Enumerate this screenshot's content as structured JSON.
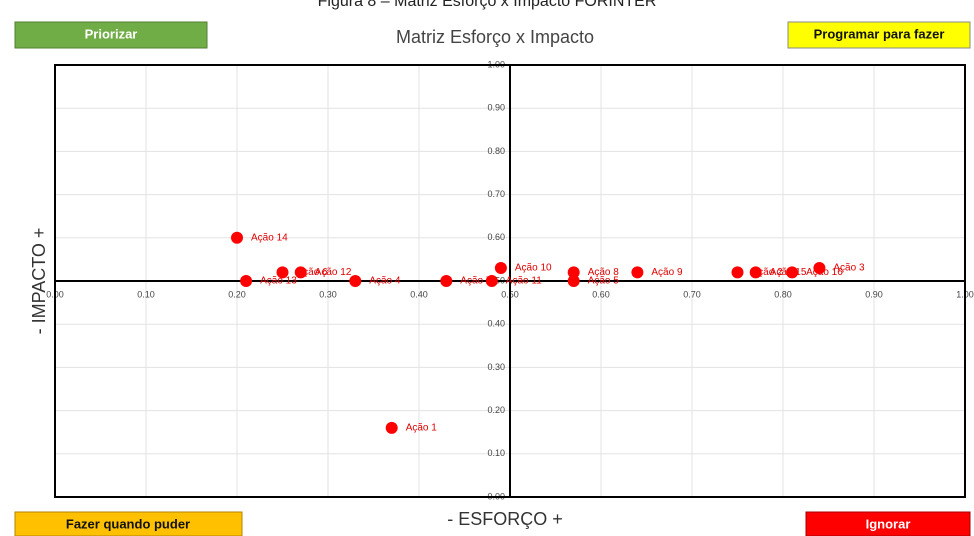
{
  "caption": "Figura 8 – Matriz Esforço x Impacto FORINTER",
  "quadrant_labels": {
    "top_left": "Priorizar",
    "top_right": "Programar para fazer",
    "bottom_left": "Fazer quando puder",
    "bottom_right": "Ignorar"
  },
  "chart_data": {
    "type": "scatter",
    "title": "Matriz Esforço x Impacto",
    "xlabel": "- ESFORÇO +",
    "ylabel": "- IMPACTO +",
    "color": "#ff0000",
    "labels": [
      "Ação 14",
      "Ação 6",
      "Ação 12",
      "Ação 13",
      "Ação 4",
      "Ação 7",
      "Ação 11",
      "Ação 10",
      "Ação 8",
      "Ação 5",
      "Ação 9",
      "Ação 2",
      "Ação 15",
      "Ação 16",
      "Ação 3",
      "Ação 1"
    ],
    "x": [
      0.2,
      0.25,
      0.27,
      0.21,
      0.33,
      0.43,
      0.48,
      0.49,
      0.57,
      0.57,
      0.64,
      0.75,
      0.77,
      0.81,
      0.84,
      0.37
    ],
    "values": [
      0.6,
      0.52,
      0.52,
      0.5,
      0.5,
      0.5,
      0.5,
      0.53,
      0.52,
      0.5,
      0.52,
      0.52,
      0.52,
      0.52,
      0.53,
      0.16
    ],
    "xlim": [
      0,
      1
    ],
    "ylim": [
      0,
      1
    ],
    "xticks": [
      {
        "value": 0,
        "label": "0.00"
      },
      {
        "value": 0.1,
        "label": "0.10"
      },
      {
        "value": 0.2,
        "label": "0.20"
      },
      {
        "value": 0.3,
        "label": "0.30"
      },
      {
        "value": 0.4,
        "label": "0.40"
      },
      {
        "value": 0.5,
        "label": "0.50"
      },
      {
        "value": 0.6,
        "label": "0.60"
      },
      {
        "value": 0.7,
        "label": "0.70"
      },
      {
        "value": 0.8,
        "label": "0.80"
      },
      {
        "value": 0.9,
        "label": "0.90"
      },
      {
        "value": 1,
        "label": "1.00"
      }
    ],
    "yticks": [
      {
        "value": 0,
        "label": "0.00"
      },
      {
        "value": 0.1,
        "label": "0.10"
      },
      {
        "value": 0.2,
        "label": "0.20"
      },
      {
        "value": 0.3,
        "label": "0.30"
      },
      {
        "value": 0.4,
        "label": "0.40"
      },
      {
        "value": 0.5,
        "label": "0.50"
      },
      {
        "value": 0.6,
        "label": "0.60"
      },
      {
        "value": 0.7,
        "label": "0.70"
      },
      {
        "value": 0.8,
        "label": "0.80"
      },
      {
        "value": 0.9,
        "label": "0.90"
      },
      {
        "value": 1,
        "label": "1.00"
      }
    ],
    "grid": true
  }
}
